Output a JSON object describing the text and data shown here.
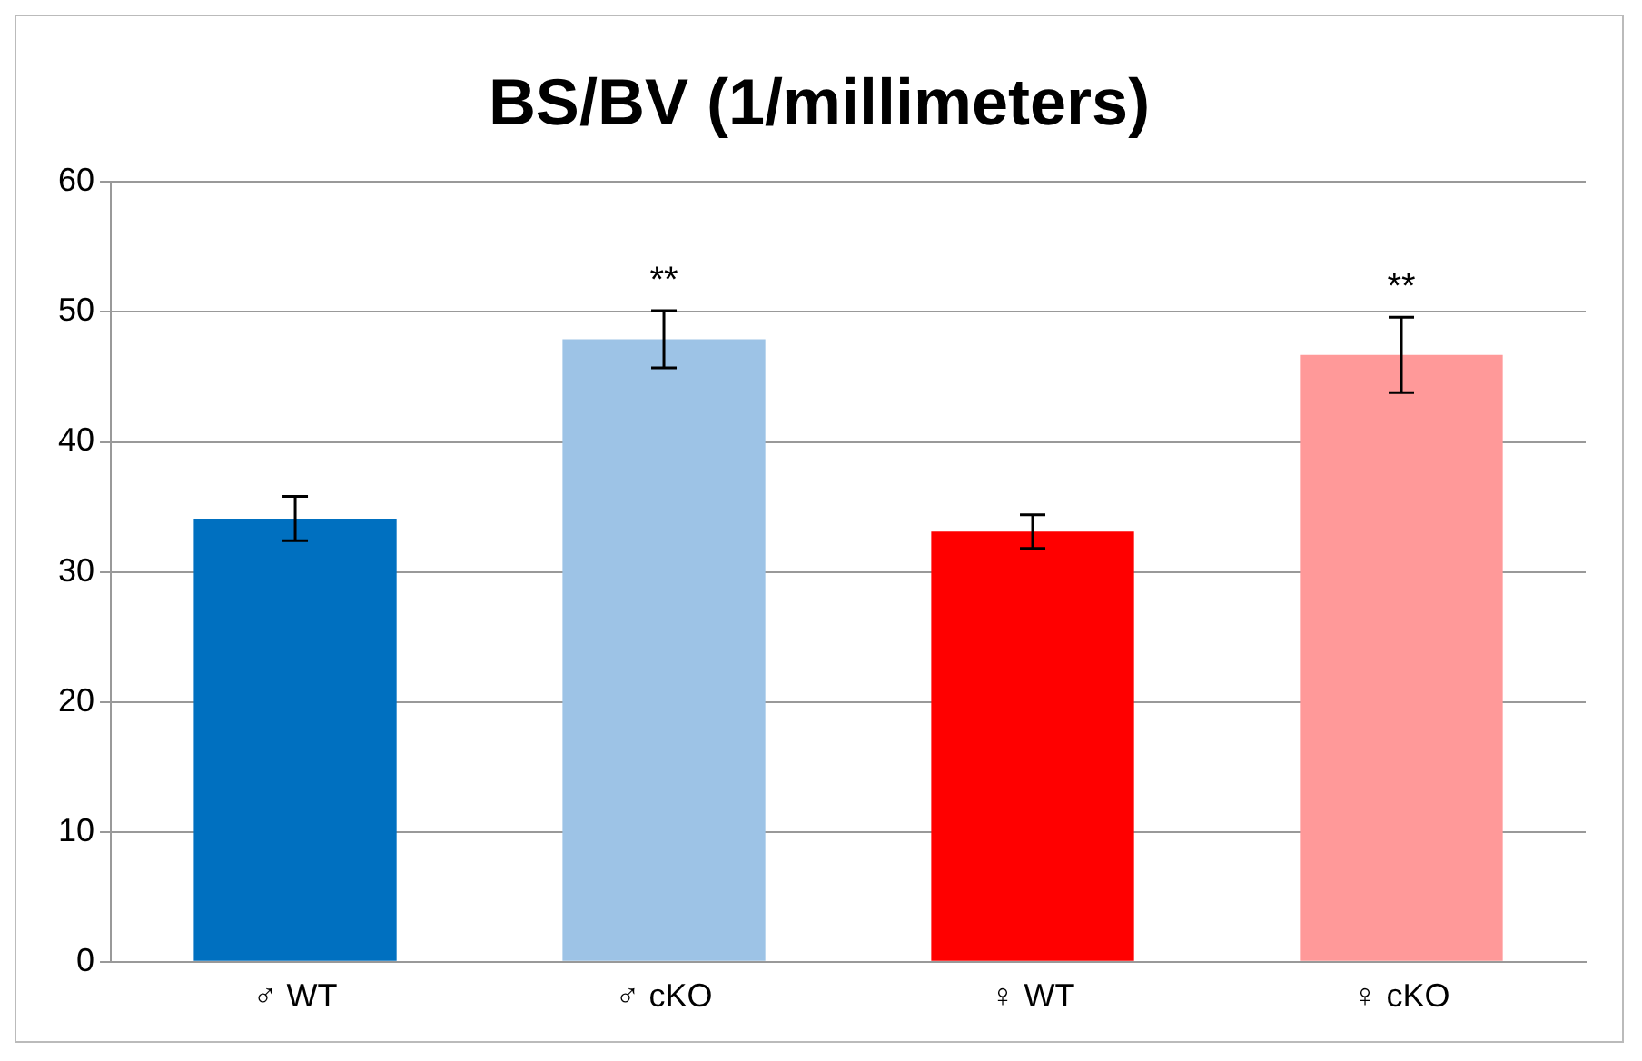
{
  "chart_data": {
    "type": "bar",
    "title": "BS/BV (1/millimeters)",
    "categories": [
      "♂ WT",
      "♂ cKO",
      "♀ WT",
      "♀ cKO"
    ],
    "values": [
      34.1,
      47.9,
      33.1,
      46.7
    ],
    "colors": [
      "#0070c0",
      "#9dc3e6",
      "#ff0000",
      "#ff9999"
    ],
    "errors": [
      1.7,
      2.2,
      1.3,
      2.9
    ],
    "annotations": [
      {
        "text": "**",
        "x": "♂ cKO",
        "y": 50.1
      },
      {
        "text": "**",
        "x": "♀ cKO",
        "y": 49.6
      }
    ],
    "ylim": [
      0,
      60
    ],
    "yticks": [
      0,
      10,
      20,
      30,
      40,
      50,
      60
    ],
    "grid": "y",
    "legend": false
  }
}
